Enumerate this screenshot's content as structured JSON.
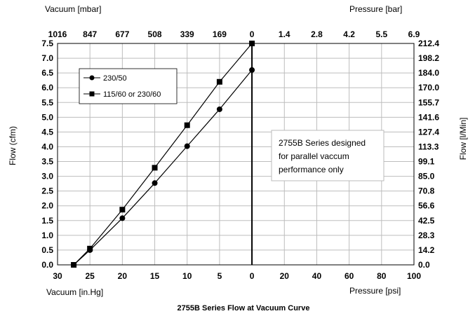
{
  "chart_data": {
    "type": "line",
    "title": "2755B Series Flow at Vacuum Curve",
    "xlabel": "Vacuum [in.Hg]",
    "xlabel_right": "Pressure [psi]",
    "xlabel_top": "Vacuum [mbar]",
    "xlabel_top_right": "Pressure [bar]",
    "ylabel": "Flow (cfm)",
    "ylabel_right": "Flow [l/Min]",
    "x_bottom_ticks": [
      "30",
      "25",
      "20",
      "15",
      "10",
      "5",
      "0",
      "20",
      "40",
      "60",
      "80",
      "100"
    ],
    "x_top_ticks": [
      "1016",
      "847",
      "677",
      "508",
      "339",
      "169",
      "0",
      "1.4",
      "2.8",
      "4.2",
      "5.5",
      "6.9"
    ],
    "y_ticks": [
      "0.0",
      "0.5",
      "1.0",
      "1.5",
      "2.0",
      "2.5",
      "3.0",
      "3.5",
      "4.0",
      "4.5",
      "5.0",
      "5.5",
      "6.0",
      "6.5",
      "7.0",
      "7.5"
    ],
    "y_right_ticks": [
      "0.0",
      "14.2",
      "28.3",
      "42.5",
      "56.6",
      "70.8",
      "85.0",
      "99.1",
      "113.3",
      "127.4",
      "141.6",
      "155.7",
      "170.0",
      "184.0",
      "198.2",
      "212.4"
    ],
    "ylim": [
      0,
      7.5
    ],
    "xlim_vacuum_inHg": [
      30,
      0
    ],
    "grid": true,
    "legend_position": "top-left",
    "series": [
      {
        "name": "230/50",
        "marker": "circle",
        "x": [
          27.5,
          25,
          20,
          15,
          10,
          5,
          0
        ],
        "y": [
          0.0,
          0.5,
          1.58,
          2.77,
          4.02,
          5.27,
          6.6
        ]
      },
      {
        "name": "115/60 or 230/60",
        "marker": "square",
        "x": [
          27.5,
          25,
          20,
          15,
          10,
          5,
          0
        ],
        "y": [
          0.0,
          0.55,
          1.87,
          3.29,
          4.73,
          6.2,
          7.5
        ]
      }
    ],
    "annotation": [
      "2755B Series designed",
      "for parallel vaccum",
      "performance only"
    ]
  }
}
